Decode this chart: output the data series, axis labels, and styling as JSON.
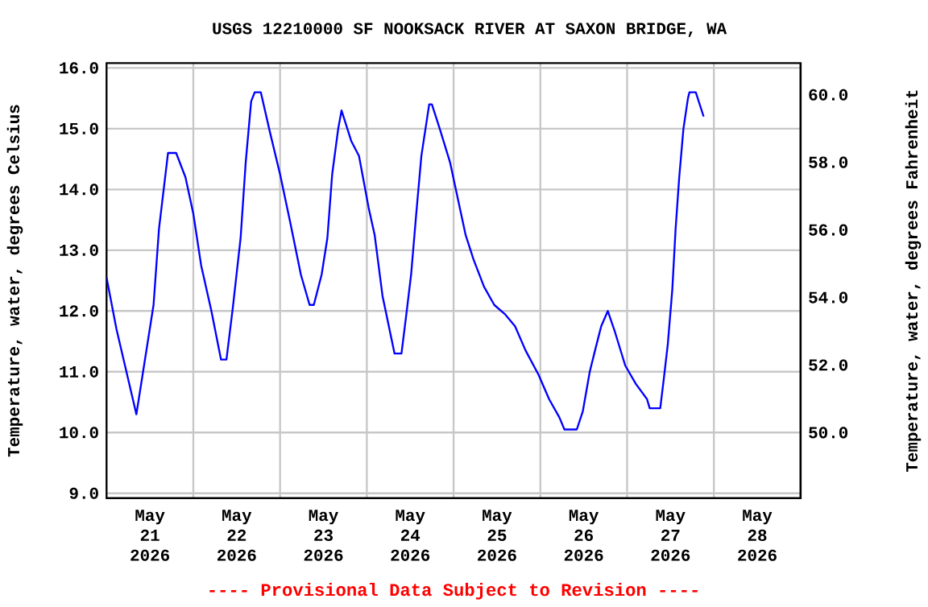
{
  "chart_data": {
    "type": "line",
    "title": "USGS 12210000 SF NOOKSACK RIVER AT SAXON BRIDGE, WA",
    "ylabel": "Temperature, water, degrees Celsius",
    "y2label": "Temperature, water, degrees Fahrenheit",
    "annotations": [
      "---- Provisional Data Subject to Revision ----"
    ],
    "x": [
      "2026-05-21T00:00",
      "2026-05-21T02:45",
      "2026-05-21T08:15",
      "2026-05-21T13:00",
      "2026-05-21T14:30",
      "2026-05-21T17:00",
      "2026-05-21T19:15",
      "2026-05-21T21:50",
      "2026-05-22T00:00",
      "2026-05-22T02:10",
      "2026-05-22T05:00",
      "2026-05-22T07:40",
      "2026-05-22T09:10",
      "2026-05-22T10:55",
      "2026-05-22T13:05",
      "2026-05-22T14:30",
      "2026-05-22T16:00",
      "2026-05-22T17:00",
      "2026-05-22T18:40",
      "2026-05-22T21:10",
      "2026-05-23T00:00",
      "2026-05-23T02:50",
      "2026-05-23T05:45",
      "2026-05-23T08:10",
      "2026-05-23T09:20",
      "2026-05-23T11:30",
      "2026-05-23T13:05",
      "2026-05-23T14:25",
      "2026-05-23T16:05",
      "2026-05-23T17:00",
      "2026-05-23T19:40",
      "2026-05-23T21:50",
      "2026-05-24T00:30",
      "2026-05-24T02:10",
      "2026-05-24T04:20",
      "2026-05-24T07:40",
      "2026-05-24T09:35",
      "2026-05-24T10:50",
      "2026-05-24T12:15",
      "2026-05-24T13:40",
      "2026-05-24T15:05",
      "2026-05-24T17:15",
      "2026-05-24T18:00",
      "2026-05-24T20:10",
      "2026-05-24T23:00",
      "2026-05-25T01:10",
      "2026-05-25T03:20",
      "2026-05-25T05:30",
      "2026-05-25T08:25",
      "2026-05-25T11:15",
      "2026-05-25T14:10",
      "2026-05-25T17:00",
      "2026-05-25T19:55",
      "2026-05-25T23:30",
      "2026-05-26T02:25",
      "2026-05-26T05:15",
      "2026-05-26T06:40",
      "2026-05-26T10:05",
      "2026-05-26T11:45",
      "2026-05-26T13:40",
      "2026-05-26T15:20",
      "2026-05-26T16:50",
      "2026-05-26T18:40",
      "2026-05-26T20:40",
      "2026-05-26T23:30",
      "2026-05-27T02:25",
      "2026-05-27T05:30",
      "2026-05-27T06:15",
      "2026-05-27T09:10",
      "2026-05-27T10:05",
      "2026-05-27T11:15",
      "2026-05-27T12:30",
      "2026-05-27T13:25",
      "2026-05-27T14:25",
      "2026-05-27T15:35",
      "2026-05-27T16:50",
      "2026-05-27T17:15",
      "2026-05-27T19:00",
      "2026-05-27T21:10"
    ],
    "series": [
      {
        "color": "#0000ff",
        "values": [
          12.55,
          11.7,
          10.3,
          12.1,
          13.35,
          14.6,
          14.6,
          14.2,
          13.6,
          12.75,
          12.0,
          11.2,
          11.2,
          12.05,
          13.2,
          14.45,
          15.45,
          15.6,
          15.6,
          14.95,
          14.25,
          13.45,
          12.6,
          12.1,
          12.1,
          12.6,
          13.2,
          14.25,
          15.0,
          15.3,
          14.8,
          14.55,
          13.7,
          13.25,
          12.25,
          11.3,
          11.3,
          11.9,
          12.6,
          13.6,
          14.55,
          15.4,
          15.4,
          15.0,
          14.45,
          13.85,
          13.25,
          12.85,
          12.4,
          12.1,
          11.95,
          11.75,
          11.35,
          10.95,
          10.55,
          10.25,
          10.05,
          10.05,
          10.35,
          11.0,
          11.4,
          11.75,
          12.0,
          11.65,
          11.1,
          10.8,
          10.55,
          10.4,
          10.4,
          10.85,
          11.45,
          12.35,
          13.35,
          14.2,
          15.0,
          15.5,
          15.6,
          15.6,
          15.2
        ]
      }
    ],
    "xlim": [
      "2026-05-21T00:00",
      "2026-05-29T00:00"
    ],
    "xticks": [
      {
        "value": "2026-05-21T12:00",
        "label": "May 21 2026"
      },
      {
        "value": "2026-05-22T00:00",
        "label": null
      },
      {
        "value": "2026-05-22T12:00",
        "label": "May 22 2026"
      },
      {
        "value": "2026-05-23T00:00",
        "label": null
      },
      {
        "value": "2026-05-23T12:00",
        "label": "May 23 2026"
      },
      {
        "value": "2026-05-24T00:00",
        "label": null
      },
      {
        "value": "2026-05-24T12:00",
        "label": "May 24 2026"
      },
      {
        "value": "2026-05-25T00:00",
        "label": null
      },
      {
        "value": "2026-05-25T12:00",
        "label": "May 25 2026"
      },
      {
        "value": "2026-05-26T00:00",
        "label": null
      },
      {
        "value": "2026-05-26T12:00",
        "label": "May 26 2026"
      },
      {
        "value": "2026-05-27T00:00",
        "label": null
      },
      {
        "value": "2026-05-27T12:00",
        "label": "May 27 2026"
      },
      {
        "value": "2026-05-28T00:00",
        "label": null
      },
      {
        "value": "2026-05-28T12:00",
        "label": "May 28 2026"
      }
    ],
    "ylim": [
      8.92,
      16.08
    ],
    "yticks": [
      {
        "value": 9,
        "label": "9.0"
      },
      {
        "value": 10,
        "label": "10.0"
      },
      {
        "value": 11,
        "label": "11.0"
      },
      {
        "value": 12,
        "label": "12.0"
      },
      {
        "value": 13,
        "label": "13.0"
      },
      {
        "value": 14,
        "label": "14.0"
      },
      {
        "value": 15,
        "label": "15.0"
      },
      {
        "value": 16,
        "label": "16.0"
      }
    ],
    "y2lim": [
      48.06,
      60.94
    ],
    "y2ticks": [
      {
        "value": 50,
        "label": "50.0"
      },
      {
        "value": 52,
        "label": "52.0"
      },
      {
        "value": 54,
        "label": "54.0"
      },
      {
        "value": 56,
        "label": "56.0"
      },
      {
        "value": 58,
        "label": "58.0"
      },
      {
        "value": 60,
        "label": "60.0"
      }
    ],
    "grid": true
  }
}
